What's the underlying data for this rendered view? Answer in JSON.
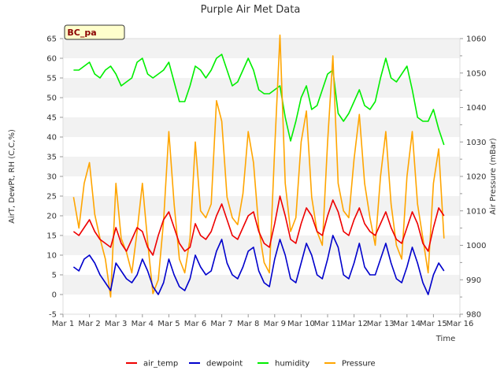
{
  "chart_data": {
    "type": "line",
    "title": "Purple Air Met Data",
    "badge": "BC_pa",
    "xlabel": "Time",
    "ylabel_left": "AirT, DewPt, RH (C,C,%)",
    "ylabel_right": "Air Pressure (mBar)",
    "x_ticks": [
      "Mar 1",
      "Mar 2",
      "Mar 3",
      "Mar 4",
      "Mar 5",
      "Mar 6",
      "Mar 7",
      "Mar 8",
      "Mar 9",
      "Mar 10",
      "Mar 11",
      "Mar 12",
      "Mar 13",
      "Mar 14",
      "Mar 15",
      "Mar 16"
    ],
    "xlim": [
      1,
      16
    ],
    "ylim_left": [
      -5,
      65
    ],
    "yticks_left": [
      "-5",
      "0",
      "5",
      "10",
      "15",
      "20",
      "25",
      "30",
      "35",
      "40",
      "45",
      "50",
      "55",
      "60",
      "65"
    ],
    "ylim_right": [
      980,
      1060
    ],
    "yticks_right": [
      "980",
      "990",
      "1000",
      "1010",
      "1020",
      "1030",
      "1040",
      "1050",
      "1060"
    ],
    "grid": "horizontal bands",
    "legend_position": "bottom",
    "colors": {
      "air_temp": "#ee0000",
      "dewpoint": "#0000cc",
      "humidity": "#00ee00",
      "Pressure": "#ffa500",
      "band": "#f2f2f2",
      "badge_bg": "#ffffcc"
    },
    "series": [
      {
        "name": "air_temp",
        "axis": "left",
        "x": [
          1.4,
          1.6,
          1.8,
          2.0,
          2.2,
          2.4,
          2.6,
          2.8,
          3.0,
          3.2,
          3.4,
          3.6,
          3.8,
          4.0,
          4.2,
          4.4,
          4.6,
          4.8,
          5.0,
          5.2,
          5.4,
          5.6,
          5.8,
          6.0,
          6.2,
          6.4,
          6.6,
          6.8,
          7.0,
          7.2,
          7.4,
          7.6,
          7.8,
          8.0,
          8.2,
          8.4,
          8.6,
          8.8,
          9.0,
          9.2,
          9.4,
          9.6,
          9.8,
          10.0,
          10.2,
          10.4,
          10.6,
          10.8,
          11.0,
          11.2,
          11.4,
          11.6,
          11.8,
          12.0,
          12.2,
          12.4,
          12.6,
          12.8,
          13.0,
          13.2,
          13.4,
          13.6,
          13.8,
          14.0,
          14.2,
          14.4,
          14.6,
          14.8,
          15.0,
          15.2,
          15.4
        ],
        "y": [
          16,
          15,
          17,
          19,
          16,
          14,
          13,
          12,
          17,
          13,
          11,
          14,
          17,
          16,
          12,
          10,
          15,
          19,
          21,
          17,
          13,
          11,
          12,
          18,
          15,
          14,
          16,
          20,
          23,
          19,
          15,
          14,
          17,
          20,
          21,
          16,
          13,
          12,
          18,
          25,
          20,
          14,
          13,
          18,
          22,
          20,
          16,
          15,
          20,
          24,
          21,
          16,
          15,
          19,
          22,
          18,
          16,
          15,
          18,
          21,
          17,
          14,
          13,
          17,
          21,
          18,
          13,
          11,
          17,
          22,
          20
        ]
      },
      {
        "name": "dewpoint",
        "axis": "left",
        "x": [
          1.4,
          1.6,
          1.8,
          2.0,
          2.2,
          2.4,
          2.6,
          2.8,
          3.0,
          3.2,
          3.4,
          3.6,
          3.8,
          4.0,
          4.2,
          4.4,
          4.6,
          4.8,
          5.0,
          5.2,
          5.4,
          5.6,
          5.8,
          6.0,
          6.2,
          6.4,
          6.6,
          6.8,
          7.0,
          7.2,
          7.4,
          7.6,
          7.8,
          8.0,
          8.2,
          8.4,
          8.6,
          8.8,
          9.0,
          9.2,
          9.4,
          9.6,
          9.8,
          10.0,
          10.2,
          10.4,
          10.6,
          10.8,
          11.0,
          11.2,
          11.4,
          11.6,
          11.8,
          12.0,
          12.2,
          12.4,
          12.6,
          12.8,
          13.0,
          13.2,
          13.4,
          13.6,
          13.8,
          14.0,
          14.2,
          14.4,
          14.6,
          14.8,
          15.0,
          15.2,
          15.4
        ],
        "y": [
          7,
          6,
          9,
          10,
          8,
          5,
          3,
          1,
          8,
          6,
          4,
          3,
          5,
          9,
          6,
          2,
          0,
          3,
          9,
          5,
          2,
          1,
          4,
          10,
          7,
          5,
          6,
          11,
          14,
          8,
          5,
          4,
          7,
          11,
          12,
          6,
          3,
          2,
          9,
          14,
          10,
          4,
          3,
          8,
          13,
          10,
          5,
          4,
          9,
          15,
          12,
          5,
          4,
          8,
          13,
          7,
          5,
          5,
          9,
          13,
          8,
          4,
          3,
          7,
          12,
          8,
          3,
          0,
          5,
          8,
          6
        ]
      },
      {
        "name": "humidity",
        "axis": "left",
        "x": [
          1.4,
          1.6,
          1.8,
          2.0,
          2.2,
          2.4,
          2.6,
          2.8,
          3.0,
          3.2,
          3.4,
          3.6,
          3.8,
          4.0,
          4.2,
          4.4,
          4.6,
          4.8,
          5.0,
          5.2,
          5.4,
          5.6,
          5.8,
          6.0,
          6.2,
          6.4,
          6.6,
          6.8,
          7.0,
          7.2,
          7.4,
          7.6,
          7.8,
          8.0,
          8.2,
          8.4,
          8.6,
          8.8,
          9.0,
          9.2,
          9.4,
          9.6,
          9.8,
          10.0,
          10.2,
          10.4,
          10.6,
          10.8,
          11.0,
          11.2,
          11.4,
          11.6,
          11.8,
          12.0,
          12.2,
          12.4,
          12.6,
          12.8,
          13.0,
          13.2,
          13.4,
          13.6,
          13.8,
          14.0,
          14.2,
          14.4,
          14.6,
          14.8,
          15.0,
          15.2,
          15.4
        ],
        "y": [
          57,
          57,
          58,
          59,
          56,
          55,
          57,
          58,
          56,
          53,
          54,
          55,
          59,
          60,
          56,
          55,
          56,
          57,
          59,
          54,
          49,
          49,
          53,
          58,
          57,
          55,
          57,
          60,
          61,
          57,
          53,
          54,
          57,
          60,
          57,
          52,
          51,
          51,
          52,
          53,
          45,
          39,
          44,
          50,
          53,
          47,
          48,
          52,
          56,
          57,
          46,
          44,
          46,
          49,
          52,
          48,
          47,
          49,
          55,
          60,
          55,
          54,
          56,
          58,
          52,
          45,
          44,
          44,
          47,
          42,
          38
        ]
      },
      {
        "name": "Pressure",
        "axis": "right",
        "x": [
          1.4,
          1.6,
          1.8,
          2.0,
          2.2,
          2.4,
          2.6,
          2.8,
          3.0,
          3.2,
          3.4,
          3.6,
          3.8,
          4.0,
          4.2,
          4.4,
          4.6,
          4.8,
          5.0,
          5.2,
          5.4,
          5.6,
          5.8,
          6.0,
          6.2,
          6.4,
          6.6,
          6.8,
          7.0,
          7.2,
          7.4,
          7.6,
          7.8,
          8.0,
          8.2,
          8.4,
          8.6,
          8.8,
          9.0,
          9.2,
          9.4,
          9.6,
          9.8,
          10.0,
          10.2,
          10.4,
          10.6,
          10.8,
          11.0,
          11.2,
          11.4,
          11.6,
          11.8,
          12.0,
          12.2,
          12.4,
          12.6,
          12.8,
          13.0,
          13.2,
          13.4,
          13.6,
          13.8,
          14.0,
          14.2,
          14.4,
          14.6,
          14.8,
          15.0,
          15.2,
          15.4
        ],
        "y": [
          1014,
          1005,
          1018,
          1024,
          1009,
          1002,
          996,
          985,
          1018,
          1002,
          998,
          992,
          1004,
          1018,
          1001,
          986,
          990,
          1007,
          1033,
          1012,
          996,
          992,
          1002,
          1030,
          1010,
          1008,
          1012,
          1042,
          1036,
          1014,
          1008,
          1006,
          1015,
          1033,
          1024,
          1005,
          995,
          992,
          1028,
          1061,
          1018,
          1004,
          1008,
          1030,
          1039,
          1014,
          1004,
          1000,
          1030,
          1055,
          1018,
          1010,
          1008,
          1025,
          1038,
          1018,
          1008,
          1000,
          1020,
          1033,
          1012,
          1000,
          996,
          1020,
          1033,
          1012,
          1002,
          992,
          1018,
          1028,
          1002
        ]
      }
    ]
  },
  "legend": [
    {
      "label": "air_temp",
      "color": "#ee0000"
    },
    {
      "label": "dewpoint",
      "color": "#0000cc"
    },
    {
      "label": "humidity",
      "color": "#00ee00"
    },
    {
      "label": "Pressure",
      "color": "#ffa500"
    }
  ]
}
